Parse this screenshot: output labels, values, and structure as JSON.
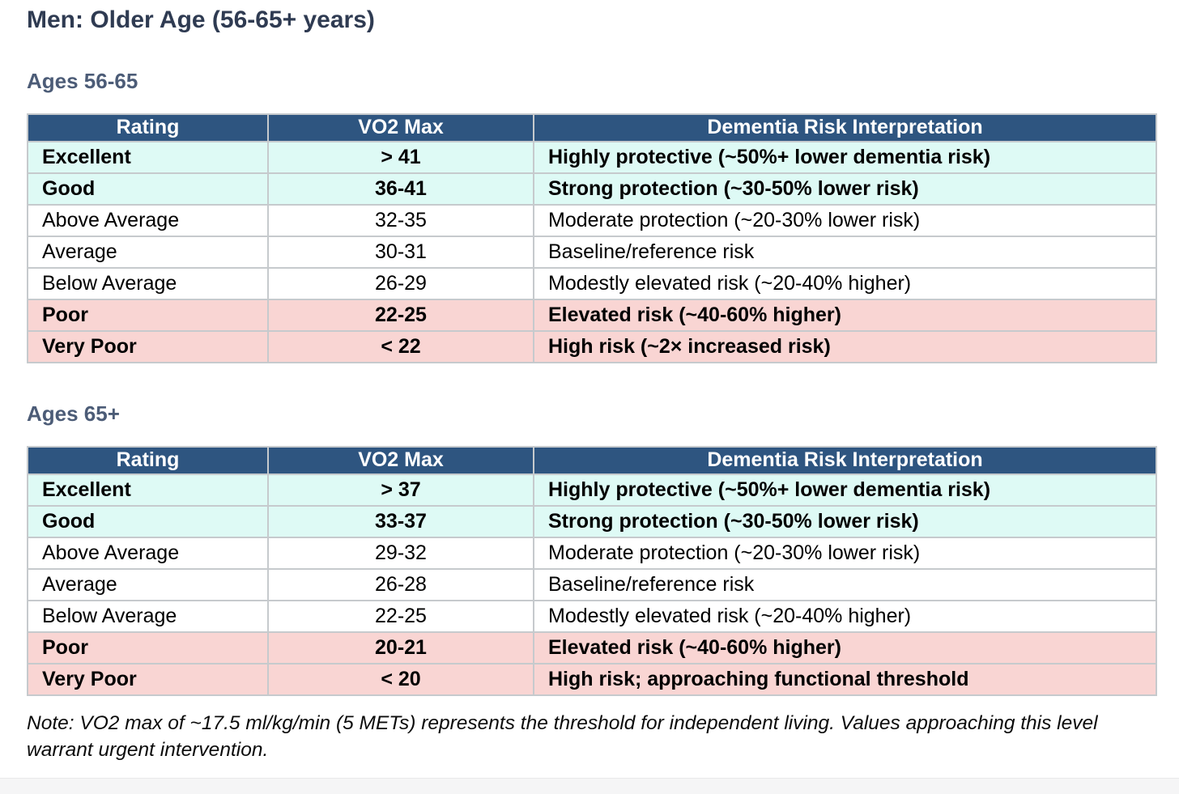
{
  "page": {
    "title": "Men: Older Age (56-65+ years)",
    "note": "Note: VO2 max of ~17.5 ml/kg/min (5 METs) represents the threshold for independent living. Values approaching this level warrant urgent intervention."
  },
  "colors": {
    "header_bg": "#2e5580",
    "header_text": "#ffffff",
    "good_row_bg": "#defaf5",
    "poor_row_bg": "#f9d5d3",
    "title_text": "#2f3b52",
    "section_title_text": "#4c5c77",
    "table_border": "#c6cacd",
    "footer_strip_bg": "#f5f5f6"
  },
  "tables": [
    {
      "section_title": "Ages 56-65",
      "headers": [
        "Rating",
        "VO2 Max",
        "Dementia Risk Interpretation"
      ],
      "rows": [
        {
          "rating": "Excellent",
          "vo2max": "> 41",
          "interpretation": "Highly protective (~50%+ lower dementia risk)",
          "tone": "good"
        },
        {
          "rating": "Good",
          "vo2max": "36-41",
          "interpretation": "Strong protection (~30-50% lower risk)",
          "tone": "good"
        },
        {
          "rating": "Above Average",
          "vo2max": "32-35",
          "interpretation": "Moderate protection (~20-30% lower risk)",
          "tone": "neutral"
        },
        {
          "rating": "Average",
          "vo2max": "30-31",
          "interpretation": "Baseline/reference risk",
          "tone": "neutral"
        },
        {
          "rating": "Below Average",
          "vo2max": "26-29",
          "interpretation": "Modestly elevated risk (~20-40% higher)",
          "tone": "neutral"
        },
        {
          "rating": "Poor",
          "vo2max": "22-25",
          "interpretation": "Elevated risk (~40-60% higher)",
          "tone": "poor"
        },
        {
          "rating": "Very Poor",
          "vo2max": "< 22",
          "interpretation": "High risk (~2× increased risk)",
          "tone": "poor"
        }
      ]
    },
    {
      "section_title": "Ages 65+",
      "headers": [
        "Rating",
        "VO2 Max",
        "Dementia Risk Interpretation"
      ],
      "rows": [
        {
          "rating": "Excellent",
          "vo2max": "> 37",
          "interpretation": "Highly protective (~50%+ lower dementia risk)",
          "tone": "good"
        },
        {
          "rating": "Good",
          "vo2max": "33-37",
          "interpretation": "Strong protection (~30-50% lower risk)",
          "tone": "good"
        },
        {
          "rating": "Above Average",
          "vo2max": "29-32",
          "interpretation": "Moderate protection (~20-30% lower risk)",
          "tone": "neutral"
        },
        {
          "rating": "Average",
          "vo2max": "26-28",
          "interpretation": "Baseline/reference risk",
          "tone": "neutral"
        },
        {
          "rating": "Below Average",
          "vo2max": "22-25",
          "interpretation": "Modestly elevated risk (~20-40% higher)",
          "tone": "neutral"
        },
        {
          "rating": "Poor",
          "vo2max": "20-21",
          "interpretation": "Elevated risk (~40-60% higher)",
          "tone": "poor"
        },
        {
          "rating": "Very Poor",
          "vo2max": "< 20",
          "interpretation": "High risk; approaching functional threshold",
          "tone": "poor"
        }
      ]
    }
  ]
}
